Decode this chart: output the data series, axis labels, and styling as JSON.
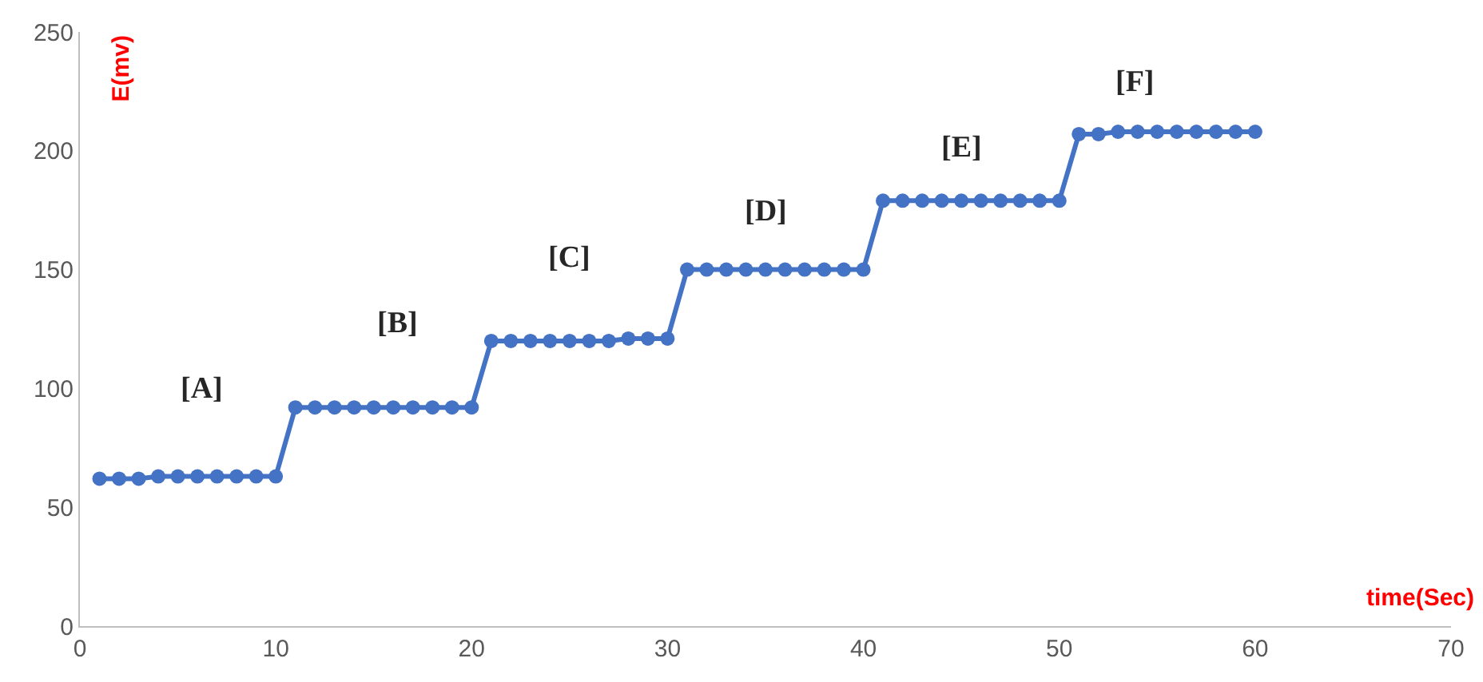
{
  "chart_data": {
    "type": "line",
    "xlabel": "time(Sec)",
    "ylabel": "E(mv)",
    "x": [
      1,
      2,
      3,
      4,
      5,
      6,
      7,
      8,
      9,
      10,
      11,
      12,
      13,
      14,
      15,
      16,
      17,
      18,
      19,
      20,
      21,
      22,
      23,
      24,
      25,
      26,
      27,
      28,
      29,
      30,
      31,
      32,
      33,
      34,
      35,
      36,
      37,
      38,
      39,
      40,
      41,
      42,
      43,
      44,
      45,
      46,
      47,
      48,
      49,
      50,
      51,
      52,
      53,
      54,
      55,
      56,
      57,
      58,
      59,
      60
    ],
    "series": [
      {
        "color": "#4472c4",
        "values": [
          62,
          62,
          62,
          63,
          63,
          63,
          63,
          63,
          63,
          63,
          92,
          92,
          92,
          92,
          92,
          92,
          92,
          92,
          92,
          92,
          120,
          120,
          120,
          120,
          120,
          120,
          120,
          121,
          121,
          121,
          150,
          150,
          150,
          150,
          150,
          150,
          150,
          150,
          150,
          150,
          179,
          179,
          179,
          179,
          179,
          179,
          179,
          179,
          179,
          179,
          207,
          207,
          208,
          208,
          208,
          208,
          208,
          208,
          208,
          208
        ]
      }
    ],
    "xlim": [
      0,
      70
    ],
    "xticks": [
      0,
      10,
      20,
      30,
      40,
      50,
      60,
      70
    ],
    "ylim": [
      0,
      250
    ],
    "yticks": [
      0,
      50,
      100,
      150,
      200,
      250
    ],
    "grid": false,
    "marker": "circle",
    "line_style": "solid",
    "annotations": [
      "[A]",
      "[B]",
      "[C]",
      "[D]",
      "[E]",
      "[F]"
    ]
  }
}
